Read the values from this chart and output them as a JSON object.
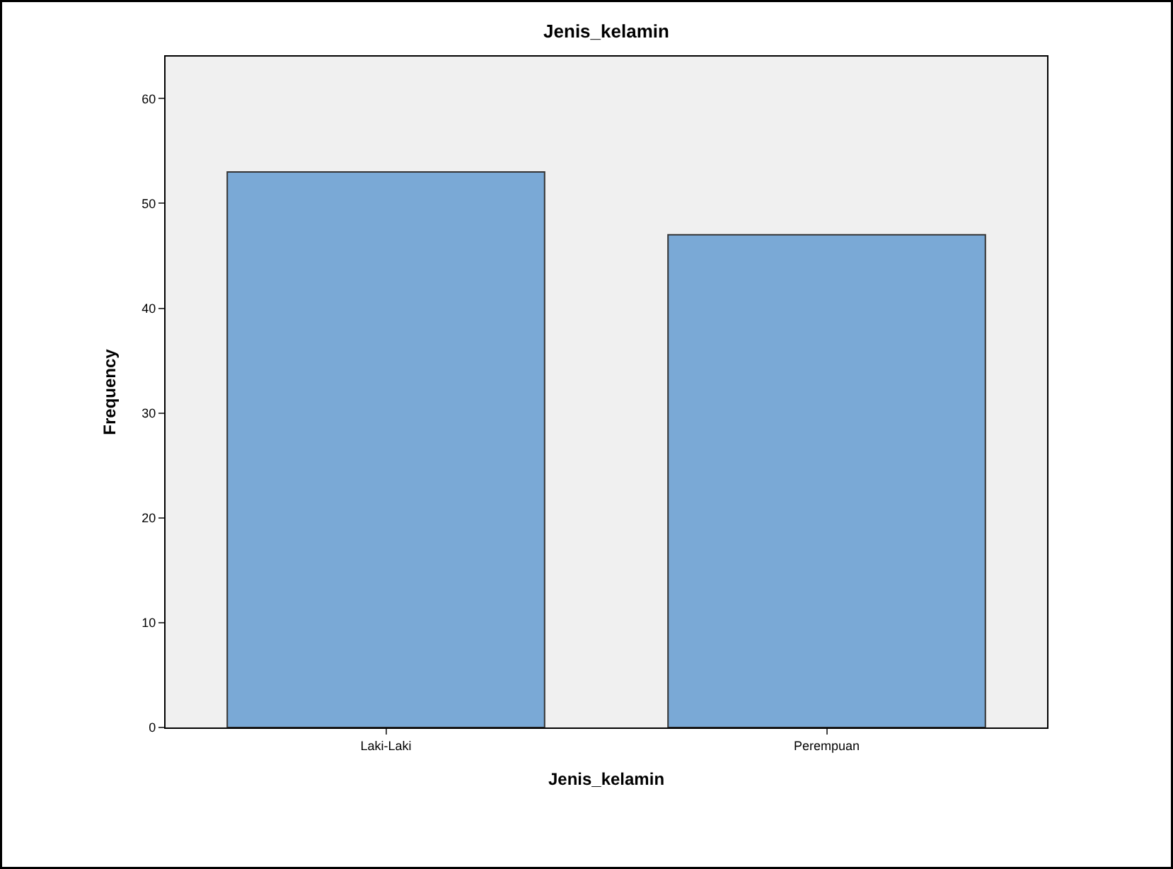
{
  "chart_data": {
    "type": "bar",
    "title": "Jenis_kelamin",
    "xlabel": "Jenis_kelamin",
    "ylabel": "Frequency",
    "categories": [
      "Laki-Laki",
      "Perempuan"
    ],
    "values": [
      53,
      47
    ],
    "color": "#7aa9d6",
    "ylim": [
      0,
      64
    ],
    "yticks": [
      0,
      10,
      20,
      30,
      40,
      50,
      60
    ],
    "grid": false
  }
}
